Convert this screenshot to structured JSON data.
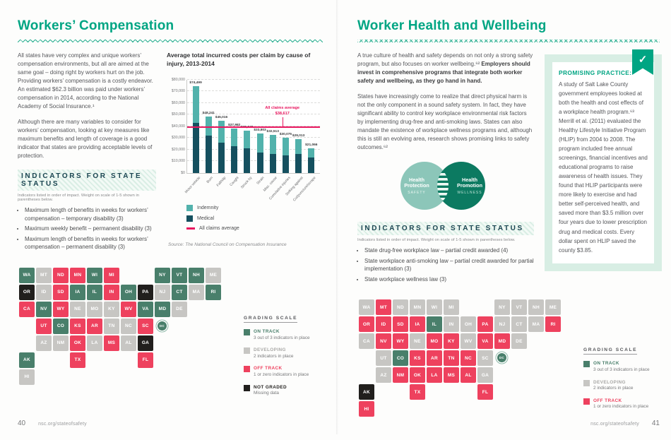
{
  "colors": {
    "accent_teal": "#00a583",
    "on_track": "#497f6b",
    "developing": "#c7c6c3",
    "off_track": "#ee415e",
    "not_graded": "#211f1d",
    "medical_bar": "#15505f",
    "indemnity_bar": "#52b2ac",
    "average_line": "#e8175f"
  },
  "chart_data": [
    {
      "type": "bar",
      "stacked": true,
      "title": "Average total incurred costs per claim by cause of injury, 2013-2014",
      "categories": [
        "Motor vehicle",
        "Burn",
        "Fall/slip",
        "Caught",
        "Struck by",
        "Strain",
        "Misc. cause",
        "Cumulative injuries",
        "Striking against",
        "Cut/puncture/scrape"
      ],
      "series": [
        {
          "name": "Medical",
          "values": [
            43000,
            32000,
            26000,
            23000,
            21000,
            17500,
            16500,
            15000,
            16000,
            13000
          ]
        },
        {
          "name": "Indemnity",
          "values": [
            31499,
            16241,
            19016,
            14982,
            15349,
            16303,
            16013,
            15075,
            13013,
            8066
          ]
        }
      ],
      "totals": [
        74499,
        48241,
        45016,
        37982,
        36349,
        33803,
        32513,
        30075,
        29013,
        21066
      ],
      "total_labels": [
        "$74,499",
        "$48,241",
        "$45,016",
        "$37,982",
        "$36,349",
        "$33,803",
        "$32,513",
        "$30,075",
        "$29,013",
        "$21,066"
      ],
      "average_line": {
        "label": "All claims average",
        "value": 38617,
        "value_label": "$38,617"
      },
      "ylim": [
        0,
        80000
      ],
      "ytick_labels": [
        "$0",
        "$10,000",
        "$20,000",
        "$30,000",
        "$40,000",
        "$50,000",
        "$60,000",
        "$70,000",
        "$80,000"
      ],
      "grid": "dashed horizontal",
      "legend_position": "below",
      "legend": [
        {
          "label": "Indemnity",
          "swatch": "indemnity"
        },
        {
          "label": "Medical",
          "swatch": "medical"
        },
        {
          "label": "All claims average",
          "swatch": "average-line"
        }
      ]
    },
    {
      "type": "heatmap",
      "title": "Workers' Compensation state status map",
      "geography": "US states + DC",
      "status_values": [
        "on-track",
        "developing",
        "off-track",
        "not-graded"
      ],
      "states": [
        {
          "a": "WA",
          "s": "on-track"
        },
        {
          "a": "OR",
          "s": "not-graded"
        },
        {
          "a": "CA",
          "s": "off-track"
        },
        {
          "a": "NV",
          "s": "on-track"
        },
        {
          "a": "ID",
          "s": "developing"
        },
        {
          "a": "UT",
          "s": "off-track"
        },
        {
          "a": "AZ",
          "s": "developing"
        },
        {
          "a": "MT",
          "s": "developing"
        },
        {
          "a": "WY",
          "s": "off-track"
        },
        {
          "a": "CO",
          "s": "on-track"
        },
        {
          "a": "NM",
          "s": "developing"
        },
        {
          "a": "ND",
          "s": "off-track"
        },
        {
          "a": "SD",
          "s": "off-track"
        },
        {
          "a": "NE",
          "s": "developing"
        },
        {
          "a": "KS",
          "s": "off-track"
        },
        {
          "a": "OK",
          "s": "off-track"
        },
        {
          "a": "TX",
          "s": "off-track"
        },
        {
          "a": "MN",
          "s": "off-track"
        },
        {
          "a": "IA",
          "s": "on-track"
        },
        {
          "a": "MO",
          "s": "developing"
        },
        {
          "a": "AR",
          "s": "off-track"
        },
        {
          "a": "LA",
          "s": "developing"
        },
        {
          "a": "WI",
          "s": "on-track"
        },
        {
          "a": "IL",
          "s": "on-track"
        },
        {
          "a": "MS",
          "s": "off-track"
        },
        {
          "a": "MI",
          "s": "off-track"
        },
        {
          "a": "IN",
          "s": "off-track"
        },
        {
          "a": "OH",
          "s": "on-track"
        },
        {
          "a": "KY",
          "s": "developing"
        },
        {
          "a": "TN",
          "s": "developing"
        },
        {
          "a": "AL",
          "s": "developing"
        },
        {
          "a": "GA",
          "s": "not-graded"
        },
        {
          "a": "FL",
          "s": "off-track"
        },
        {
          "a": "SC",
          "s": "off-track"
        },
        {
          "a": "NC",
          "s": "developing"
        },
        {
          "a": "VA",
          "s": "on-track"
        },
        {
          "a": "WV",
          "s": "off-track"
        },
        {
          "a": "PA",
          "s": "not-graded"
        },
        {
          "a": "NY",
          "s": "on-track"
        },
        {
          "a": "VT",
          "s": "on-track"
        },
        {
          "a": "NH",
          "s": "on-track"
        },
        {
          "a": "ME",
          "s": "developing"
        },
        {
          "a": "MA",
          "s": "developing"
        },
        {
          "a": "RI",
          "s": "on-track"
        },
        {
          "a": "CT",
          "s": "on-track"
        },
        {
          "a": "NJ",
          "s": "developing"
        },
        {
          "a": "DE",
          "s": "developing"
        },
        {
          "a": "MD",
          "s": "on-track"
        },
        {
          "a": "DC",
          "s": "on-track"
        },
        {
          "a": "AK",
          "s": "on-track"
        },
        {
          "a": "HI",
          "s": "developing"
        }
      ]
    },
    {
      "type": "heatmap",
      "title": "Worker Health and Wellbeing state status map",
      "geography": "US states + DC",
      "status_values": [
        "on-track",
        "developing",
        "off-track",
        "not-graded"
      ],
      "states": [
        {
          "a": "WA",
          "s": "developing"
        },
        {
          "a": "OR",
          "s": "off-track"
        },
        {
          "a": "CA",
          "s": "developing"
        },
        {
          "a": "NV",
          "s": "off-track"
        },
        {
          "a": "ID",
          "s": "off-track"
        },
        {
          "a": "UT",
          "s": "developing"
        },
        {
          "a": "AZ",
          "s": "developing"
        },
        {
          "a": "MT",
          "s": "off-track"
        },
        {
          "a": "WY",
          "s": "off-track"
        },
        {
          "a": "CO",
          "s": "on-track"
        },
        {
          "a": "NM",
          "s": "off-track"
        },
        {
          "a": "ND",
          "s": "developing"
        },
        {
          "a": "SD",
          "s": "off-track"
        },
        {
          "a": "NE",
          "s": "developing"
        },
        {
          "a": "KS",
          "s": "off-track"
        },
        {
          "a": "OK",
          "s": "off-track"
        },
        {
          "a": "TX",
          "s": "off-track"
        },
        {
          "a": "MN",
          "s": "developing"
        },
        {
          "a": "IA",
          "s": "off-track"
        },
        {
          "a": "MO",
          "s": "off-track"
        },
        {
          "a": "AR",
          "s": "off-track"
        },
        {
          "a": "LA",
          "s": "off-track"
        },
        {
          "a": "WI",
          "s": "developing"
        },
        {
          "a": "IL",
          "s": "on-track"
        },
        {
          "a": "MS",
          "s": "off-track"
        },
        {
          "a": "MI",
          "s": "developing"
        },
        {
          "a": "IN",
          "s": "developing"
        },
        {
          "a": "OH",
          "s": "developing"
        },
        {
          "a": "KY",
          "s": "off-track"
        },
        {
          "a": "TN",
          "s": "off-track"
        },
        {
          "a": "AL",
          "s": "off-track"
        },
        {
          "a": "GA",
          "s": "developing"
        },
        {
          "a": "FL",
          "s": "off-track"
        },
        {
          "a": "SC",
          "s": "developing"
        },
        {
          "a": "NC",
          "s": "off-track"
        },
        {
          "a": "VA",
          "s": "off-track"
        },
        {
          "a": "WV",
          "s": "developing"
        },
        {
          "a": "PA",
          "s": "off-track"
        },
        {
          "a": "NY",
          "s": "developing"
        },
        {
          "a": "VT",
          "s": "developing"
        },
        {
          "a": "NH",
          "s": "developing"
        },
        {
          "a": "ME",
          "s": "developing"
        },
        {
          "a": "MA",
          "s": "developing"
        },
        {
          "a": "RI",
          "s": "off-track"
        },
        {
          "a": "CT",
          "s": "developing"
        },
        {
          "a": "NJ",
          "s": "developing"
        },
        {
          "a": "DE",
          "s": "developing"
        },
        {
          "a": "MD",
          "s": "off-track"
        },
        {
          "a": "DC",
          "s": "on-track"
        },
        {
          "a": "AK",
          "s": "not-graded"
        },
        {
          "a": "HI",
          "s": "off-track"
        }
      ]
    }
  ],
  "page_left": {
    "title": "Workers’ Compensation",
    "intro_p1": "All states have very complex and unique workers’ compensation environments, but all are aimed at the same goal – doing right by workers hurt on the job. Providing workers’ compensation is a costly endeavor. An estimated $62.3 billion was paid under workers’ compensation in 2014, according to the National Academy of Social Insurance.¹",
    "intro_p2": "Although there are many variables to consider for workers’ compensation, looking at key measures like maximum benefits and length of coverage is a good indicator that states are providing acceptable levels of protection.",
    "indicators_heading": "INDICATORS FOR STATE STATUS",
    "indicators_note": "Indicators listed in order of impact. Weight on scale of 1-5 shown in parentheses below.",
    "indicators": [
      "Maximum length of benefits in weeks for workers’ compensation – temporary disability (3)",
      "Maximum weekly benefit – permanent disability (3)",
      "Maximum length of benefits in weeks for workers’ compensation – permanent disability (3)"
    ],
    "chart_source": "Source: The National Council on Compensation Insurance",
    "grading_scale": {
      "title": "GRADING SCALE",
      "items": [
        {
          "label": "ON TRACK",
          "desc": "3 out of 3 indicators in place",
          "key": "on-track"
        },
        {
          "label": "DEVELOPING",
          "desc": "2 indicators in place",
          "key": "developing"
        },
        {
          "label": "OFF TRACK",
          "desc": "1 or zero indicators in place",
          "key": "off-track"
        },
        {
          "label": "NOT GRADED",
          "desc": "Missing data",
          "key": "not-graded"
        }
      ]
    }
  },
  "page_right": {
    "title": "Worker Health and Wellbeing",
    "intro_p1_normal": "A true culture of health and safety depends on not only a strong safety program, but also focuses on worker wellbeing.⁶² ",
    "intro_p1_bold": "Employers should invest in comprehensive programs that integrate both worker safety and wellbeing, as they go hand in hand.",
    "intro_p2": "States have increasingly come to realize that direct physical harm is not the only component in a sound safety system. In fact, they have significant ability to control key workplace environmental risk factors by implementing drug-free and anti-smoking laws. States can also mandate the existence of workplace wellness programs and, although this is still an evolving area, research shows promising links to safety outcomes.⁶²",
    "venn": {
      "left_title_line1": "Health",
      "left_title_line2": "Protection",
      "left_sub": "SAFETY",
      "right_title_line1": "Health",
      "right_title_line2": "Promotion",
      "right_sub": "WELLNESS"
    },
    "indicators_heading": "INDICATORS FOR STATE STATUS",
    "indicators_note": "Indicators listed in order of impact. Weight on scale of 1-5 shown in parentheses below.",
    "indicators": [
      "State drug-free workplace law – partial credit awarded (4)",
      "State workplace anti-smoking law – partial credit awarded for partial implementation (3)",
      "State workplace wellness law (3)"
    ],
    "promising_practice": {
      "label": "PROMISING PRACTICE:",
      "body": "A study of Salt Lake County government employees looked at both the health and cost effects of a workplace health program.⁶³ Merrill et al. (2011) evaluated the Healthy Lifestyle Initiative Program (HLIP) from 2004 to 2008. The program included free annual screenings, financial incentives and educational programs to raise awareness of health issues. They found that HLIP participants were more likely to exercise and had better self-perceived health, and saved more than $3.5 million over four years due to lower prescription drug and medical costs. Every dollar spent on HLIP saved the county $3.85.",
      "check_icon": "✓"
    },
    "grading_scale": {
      "title": "GRADING SCALE",
      "items": [
        {
          "label": "ON TRACK",
          "desc": "3 out of 3 indicators in place",
          "key": "on-track"
        },
        {
          "label": "DEVELOPING",
          "desc": "2 indicators in place",
          "key": "developing"
        },
        {
          "label": "OFF TRACK",
          "desc": "1 or zero indicators in place",
          "key": "off-track"
        }
      ]
    }
  },
  "footer": {
    "left_page_number": "40",
    "right_page_number": "41",
    "url": "nsc.org/stateofsafety"
  }
}
